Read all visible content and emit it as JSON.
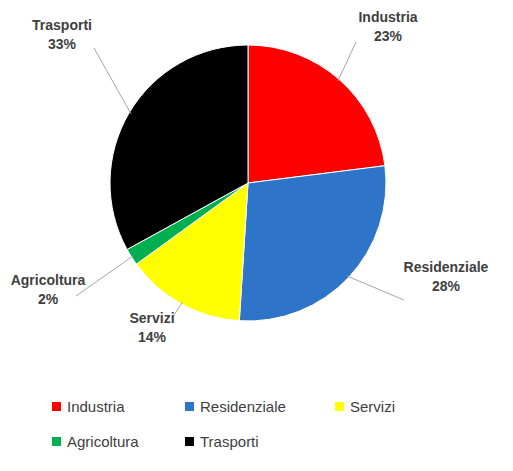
{
  "chart_data": {
    "type": "pie",
    "categories": [
      "Industria",
      "Residenziale",
      "Servizi",
      "Agricoltura",
      "Trasporti"
    ],
    "values": [
      23,
      28,
      14,
      2,
      33
    ],
    "value_labels": [
      "23%",
      "28%",
      "14%",
      "2%",
      "33%"
    ],
    "colors": [
      "#ff0000",
      "#2e75c9",
      "#ffff00",
      "#00b050",
      "#000000"
    ],
    "data_labels": true,
    "legend": "bottom"
  }
}
